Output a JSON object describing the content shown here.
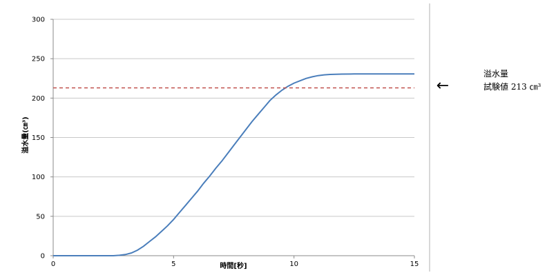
{
  "chart_data": {
    "type": "line",
    "title": "",
    "xlabel": "時間[秒]",
    "ylabel": "溢水量(㎝³)",
    "xlim": [
      0,
      15
    ],
    "ylim": [
      0,
      300
    ],
    "xticks": [
      0,
      5,
      10,
      15
    ],
    "yticks": [
      0,
      50,
      100,
      150,
      200,
      250,
      300
    ],
    "grid": "horizontal",
    "series": [
      {
        "color": "#4a7ebb",
        "x": [
          0,
          2.5,
          2.75,
          3.0,
          3.25,
          3.5,
          3.75,
          4.0,
          4.25,
          4.5,
          4.75,
          5.0,
          5.25,
          5.5,
          5.75,
          6.0,
          6.25,
          6.5,
          6.75,
          7.0,
          7.25,
          7.5,
          7.75,
          8.0,
          8.25,
          8.5,
          8.75,
          9.0,
          9.25,
          9.5,
          9.75,
          10.0,
          10.25,
          10.5,
          10.75,
          11.0,
          11.25,
          11.5,
          11.75,
          12.0,
          12.5,
          13.0,
          14.0,
          15.0
        ],
        "y": [
          0,
          0,
          0.5,
          1.5,
          3.5,
          7,
          12,
          18,
          24,
          31,
          38,
          46,
          55,
          64,
          73,
          82,
          92,
          101,
          111,
          120,
          130,
          140,
          150,
          160,
          170,
          179,
          188,
          197,
          204,
          210,
          215,
          219,
          222,
          225,
          227,
          228.5,
          229.5,
          230,
          230.3,
          230.5,
          230.6,
          230.6,
          230.6,
          230.6
        ]
      }
    ],
    "reference_line": {
      "y": 213,
      "color": "#c0504d",
      "style": "dashed"
    },
    "annotation": {
      "line1": "溢水量",
      "line2": "試験値 213 ㎝³",
      "arrow": "←"
    }
  }
}
